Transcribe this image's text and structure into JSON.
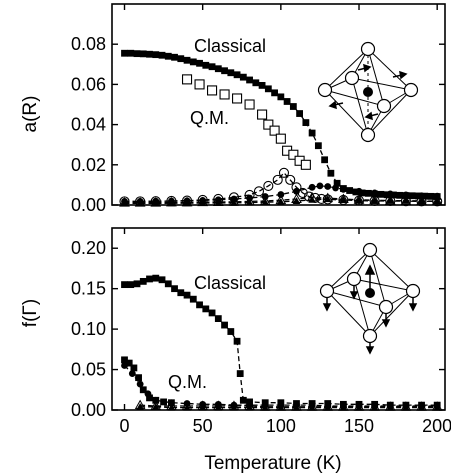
{
  "chart_data": [
    {
      "type": "scatter",
      "panel": "top",
      "xlabel": "",
      "ylabel": "a(R)",
      "xlim": [
        -8,
        205
      ],
      "ylim": [
        0,
        0.1
      ],
      "x_ticks": [
        0,
        50,
        100,
        150,
        200
      ],
      "y_ticks": [
        "0.00",
        "0.02",
        "0.04",
        "0.06",
        "0.08"
      ],
      "y_tick_values": [
        0,
        0.02,
        0.04,
        0.06,
        0.08
      ],
      "annotations": [
        "Classical",
        "Q.M."
      ],
      "series": [
        {
          "marker": "filled-square",
          "dashed_curve": true,
          "x": [
            0,
            4,
            8,
            12,
            16,
            20,
            24,
            28,
            32,
            36,
            40,
            44,
            48,
            52,
            56,
            60,
            64,
            68,
            72,
            76,
            80,
            84,
            88,
            92,
            96,
            100,
            104,
            108,
            112,
            116,
            120,
            124,
            128,
            132,
            136,
            140,
            144,
            148,
            152,
            156,
            160,
            164,
            168,
            172,
            176,
            180,
            184,
            188,
            192,
            196,
            200
          ],
          "y": [
            0.0755,
            0.0755,
            0.0753,
            0.0752,
            0.075,
            0.0748,
            0.0745,
            0.074,
            0.0735,
            0.0728,
            0.072,
            0.0712,
            0.0705,
            0.0695,
            0.0688,
            0.0678,
            0.0668,
            0.0658,
            0.0648,
            0.0636,
            0.0622,
            0.0608,
            0.0595,
            0.0578,
            0.0558,
            0.0538,
            0.0515,
            0.049,
            0.0455,
            0.041,
            0.0358,
            0.0295,
            0.0225,
            0.0158,
            0.0108,
            0.0082,
            0.0072,
            0.0065,
            0.006,
            0.0058,
            0.0055,
            0.0053,
            0.0051,
            0.005,
            0.0048,
            0.0047,
            0.0046,
            0.0045,
            0.0044,
            0.0043,
            0.0042
          ]
        },
        {
          "marker": "open-square",
          "dashed_curve": false,
          "x": [
            40,
            48,
            56,
            64,
            72,
            80,
            88,
            92,
            96,
            100,
            104,
            108,
            112,
            116
          ],
          "y": [
            0.0625,
            0.06,
            0.057,
            0.055,
            0.053,
            0.05,
            0.045,
            0.04,
            0.037,
            0.033,
            0.027,
            0.025,
            0.022,
            0.02
          ]
        },
        {
          "marker": "open-circle",
          "dashed_curve": true,
          "x": [
            0,
            10,
            20,
            30,
            40,
            50,
            60,
            70,
            80,
            86,
            92,
            98,
            102,
            106,
            110,
            114,
            118,
            122,
            126,
            130,
            140,
            150,
            160,
            170,
            180,
            190,
            200
          ],
          "y": [
            0.0018,
            0.0018,
            0.0019,
            0.002,
            0.0022,
            0.0025,
            0.003,
            0.0038,
            0.005,
            0.0068,
            0.0095,
            0.0125,
            0.016,
            0.0125,
            0.0088,
            0.006,
            0.0042,
            0.0035,
            0.003,
            0.0028,
            0.0025,
            0.0022,
            0.002,
            0.002,
            0.0019,
            0.0018,
            0.0018
          ]
        },
        {
          "marker": "filled-circle",
          "dashed_curve": true,
          "x": [
            0,
            10,
            20,
            30,
            40,
            50,
            60,
            70,
            80,
            90,
            100,
            110,
            120,
            125,
            130,
            135,
            140,
            150,
            160,
            170,
            180,
            190,
            200
          ],
          "y": [
            0.0018,
            0.0018,
            0.0019,
            0.002,
            0.0021,
            0.0023,
            0.0026,
            0.003,
            0.0035,
            0.0042,
            0.0052,
            0.0068,
            0.0088,
            0.0095,
            0.0092,
            0.0085,
            0.0078,
            0.0068,
            0.006,
            0.0055,
            0.005,
            0.0046,
            0.0044
          ]
        },
        {
          "marker": "open-triangle",
          "dashed_curve": true,
          "x": [
            0,
            10,
            20,
            30,
            40,
            50,
            60,
            70,
            80,
            90,
            100,
            110,
            120,
            130,
            140,
            150,
            160,
            170,
            180,
            190,
            200
          ],
          "y": [
            0.0012,
            0.0012,
            0.0012,
            0.0013,
            0.0013,
            0.0014,
            0.0015,
            0.0016,
            0.0018,
            0.002,
            0.0024,
            0.003,
            0.0038,
            0.0034,
            0.003,
            0.0026,
            0.0024,
            0.0022,
            0.0021,
            0.002,
            0.0019
          ]
        },
        {
          "marker": "filled-triangle",
          "dashed_curve": true,
          "x": [
            0,
            10,
            20,
            30,
            40,
            50,
            60,
            70,
            80,
            90,
            100,
            110,
            120,
            130,
            140,
            150,
            160,
            170,
            180,
            190,
            200
          ],
          "y": [
            0.0008,
            0.0008,
            0.0008,
            0.0009,
            0.0009,
            0.001,
            0.001,
            0.0011,
            0.0012,
            0.0014,
            0.0016,
            0.002,
            0.0026,
            0.003,
            0.0028,
            0.0025,
            0.0023,
            0.0022,
            0.0021,
            0.002,
            0.0019
          ]
        }
      ]
    },
    {
      "type": "scatter",
      "panel": "bottom",
      "xlabel": "Temperature (K)",
      "ylabel": "f(Γ)",
      "xlim": [
        -8,
        205
      ],
      "ylim": [
        0,
        0.225
      ],
      "x_ticks": [
        0,
        50,
        100,
        150,
        200
      ],
      "y_ticks": [
        "0.00",
        "0.05",
        "0.10",
        "0.15",
        "0.20"
      ],
      "y_tick_values": [
        0,
        0.05,
        0.1,
        0.15,
        0.2
      ],
      "annotations": [
        "Classical",
        "Q.M."
      ],
      "series": [
        {
          "marker": "filled-square",
          "dashed_curve": true,
          "x": [
            0,
            4,
            8,
            12,
            16,
            20,
            24,
            28,
            32,
            36,
            40,
            44,
            48,
            52,
            56,
            60,
            64,
            68,
            72,
            74,
            76,
            80,
            90,
            100,
            110,
            120,
            130,
            140,
            150,
            160,
            170,
            180,
            190,
            200
          ],
          "y": [
            0.155,
            0.155,
            0.156,
            0.159,
            0.162,
            0.163,
            0.161,
            0.156,
            0.15,
            0.145,
            0.142,
            0.137,
            0.13,
            0.125,
            0.12,
            0.113,
            0.105,
            0.097,
            0.085,
            0.045,
            0.012,
            0.01,
            0.009,
            0.009,
            0.008,
            0.008,
            0.008,
            0.007,
            0.007,
            0.007,
            0.006,
            0.006,
            0.006,
            0.006
          ]
        },
        {
          "marker": "filled-square",
          "dashed_curve": false,
          "x": [
            0,
            3,
            6,
            9,
            12,
            16,
            20,
            25,
            30
          ],
          "y": [
            0.062,
            0.058,
            0.052,
            0.04,
            0.025,
            0.015,
            0.012,
            0.01,
            0.009
          ]
        },
        {
          "marker": "filled-circle",
          "dashed_curve": true,
          "x": [
            0,
            5,
            10,
            15,
            20,
            30,
            40,
            50,
            60,
            70,
            80,
            90,
            100,
            110,
            120,
            130,
            140,
            150,
            160,
            170,
            180,
            190,
            200
          ],
          "y": [
            0.055,
            0.045,
            0.032,
            0.02,
            0.012,
            0.009,
            0.008,
            0.007,
            0.007,
            0.006,
            0.006,
            0.006,
            0.006,
            0.006,
            0.006,
            0.005,
            0.005,
            0.005,
            0.005,
            0.005,
            0.005,
            0.005,
            0.005
          ]
        },
        {
          "marker": "open-triangle",
          "dashed_curve": true,
          "x": [
            10,
            20,
            30,
            40,
            50,
            60,
            70,
            80,
            90,
            100,
            110,
            120,
            130,
            140,
            150,
            160,
            170,
            180,
            190,
            200
          ],
          "y": [
            0.006,
            0.005,
            0.005,
            0.005,
            0.005,
            0.005,
            0.005,
            0.005,
            0.004,
            0.004,
            0.004,
            0.004,
            0.004,
            0.004,
            0.004,
            0.004,
            0.004,
            0.004,
            0.004,
            0.004
          ]
        },
        {
          "marker": "filled-triangle",
          "dashed_curve": true,
          "x": [
            10,
            20,
            30,
            40,
            50,
            60,
            70,
            80,
            90,
            100,
            110,
            120,
            130,
            140,
            150,
            160,
            170,
            180,
            190,
            200
          ],
          "y": [
            0.004,
            0.004,
            0.003,
            0.003,
            0.003,
            0.003,
            0.003,
            0.003,
            0.003,
            0.003,
            0.003,
            0.003,
            0.003,
            0.003,
            0.003,
            0.003,
            0.003,
            0.003,
            0.003,
            0.003
          ]
        }
      ]
    }
  ],
  "icons": [
    "octahedron-distortion-top-icon",
    "octahedron-distortion-bottom-icon"
  ]
}
